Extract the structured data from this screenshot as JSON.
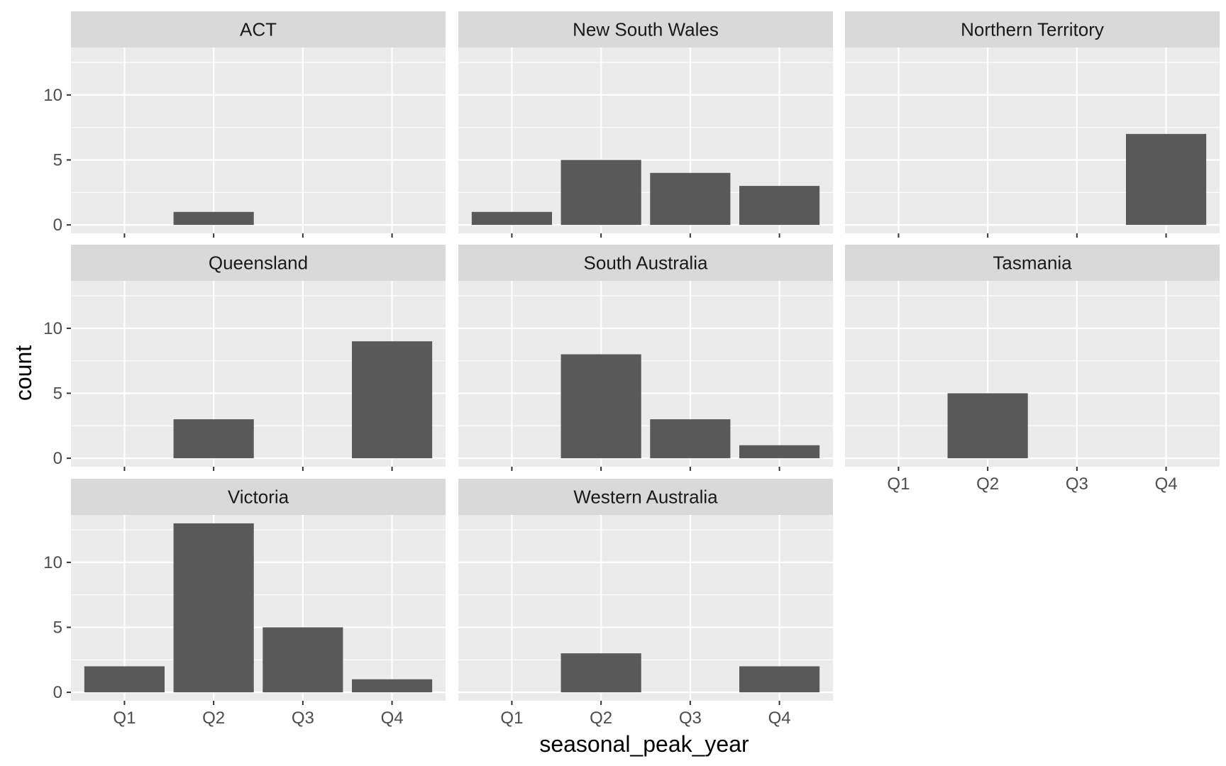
{
  "chart_data": {
    "type": "bar",
    "xlabel": "seasonal_peak_year",
    "ylabel": "count",
    "categories": [
      "Q1",
      "Q2",
      "Q3",
      "Q4"
    ],
    "ylim": [
      0,
      13
    ],
    "yticks": [
      0,
      5,
      10
    ],
    "panels": [
      {
        "name": "ACT",
        "values": [
          0,
          1,
          0,
          0
        ]
      },
      {
        "name": "New South Wales",
        "values": [
          1,
          5,
          4,
          3
        ]
      },
      {
        "name": "Northern Territory",
        "values": [
          0,
          0,
          0,
          7
        ]
      },
      {
        "name": "Queensland",
        "values": [
          0,
          3,
          0,
          9
        ]
      },
      {
        "name": "South Australia",
        "values": [
          0,
          8,
          3,
          1
        ]
      },
      {
        "name": "Tasmania",
        "values": [
          0,
          5,
          0,
          0
        ]
      },
      {
        "name": "Victoria",
        "values": [
          2,
          13,
          5,
          1
        ]
      },
      {
        "name": "Western Australia",
        "values": [
          0,
          3,
          0,
          2
        ]
      }
    ],
    "colors": {
      "bar": "#595959",
      "panel_background": "#ebebeb",
      "strip_background": "#d9d9d9",
      "grid": "#ffffff",
      "tick_mark": "#333333"
    }
  }
}
